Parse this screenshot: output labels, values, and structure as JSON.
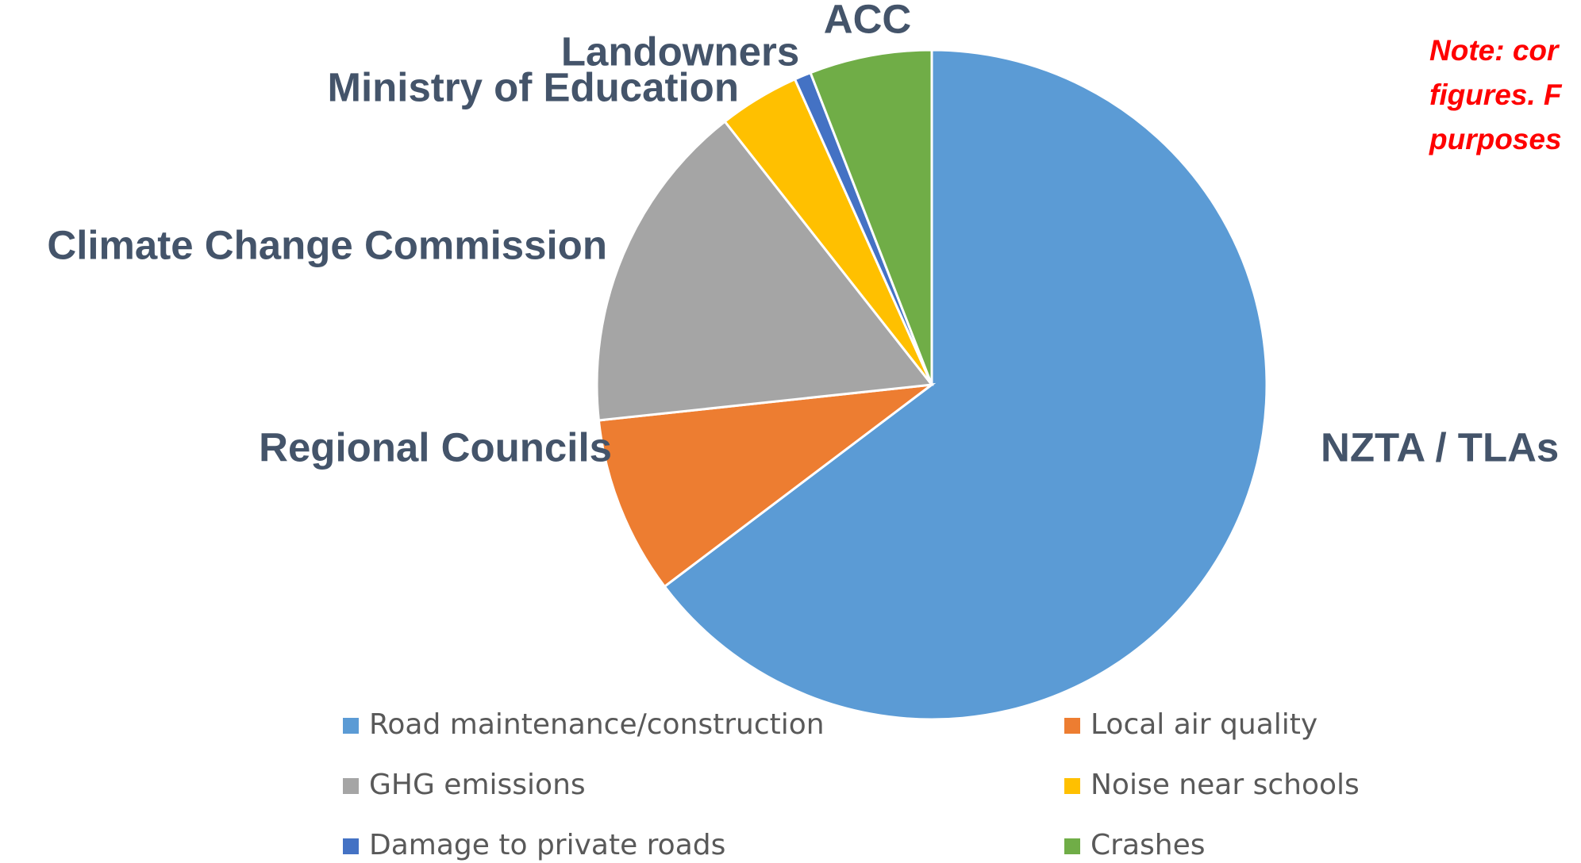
{
  "chart_data": {
    "type": "pie",
    "categories": [
      "Road maintenance/construction",
      "Local air quality",
      "GHG emissions",
      "Noise near schools",
      "Damage to private roads",
      "Crashes"
    ],
    "values": [
      64.7,
      8.6,
      16.1,
      3.9,
      0.8,
      5.9
    ],
    "labels": [
      "NZTA / TLAs",
      "Regional Councils",
      "Climate Change Commission",
      "Ministry of Education",
      "Landowners",
      "ACC"
    ],
    "colors": [
      "#5b9bd5",
      "#ed7d31",
      "#a5a5a5",
      "#ffc000",
      "#4472c4",
      "#70ad47"
    ],
    "annotation": [
      "Note: cor",
      "figures. F",
      "purposes"
    ],
    "legend": "bottom"
  }
}
